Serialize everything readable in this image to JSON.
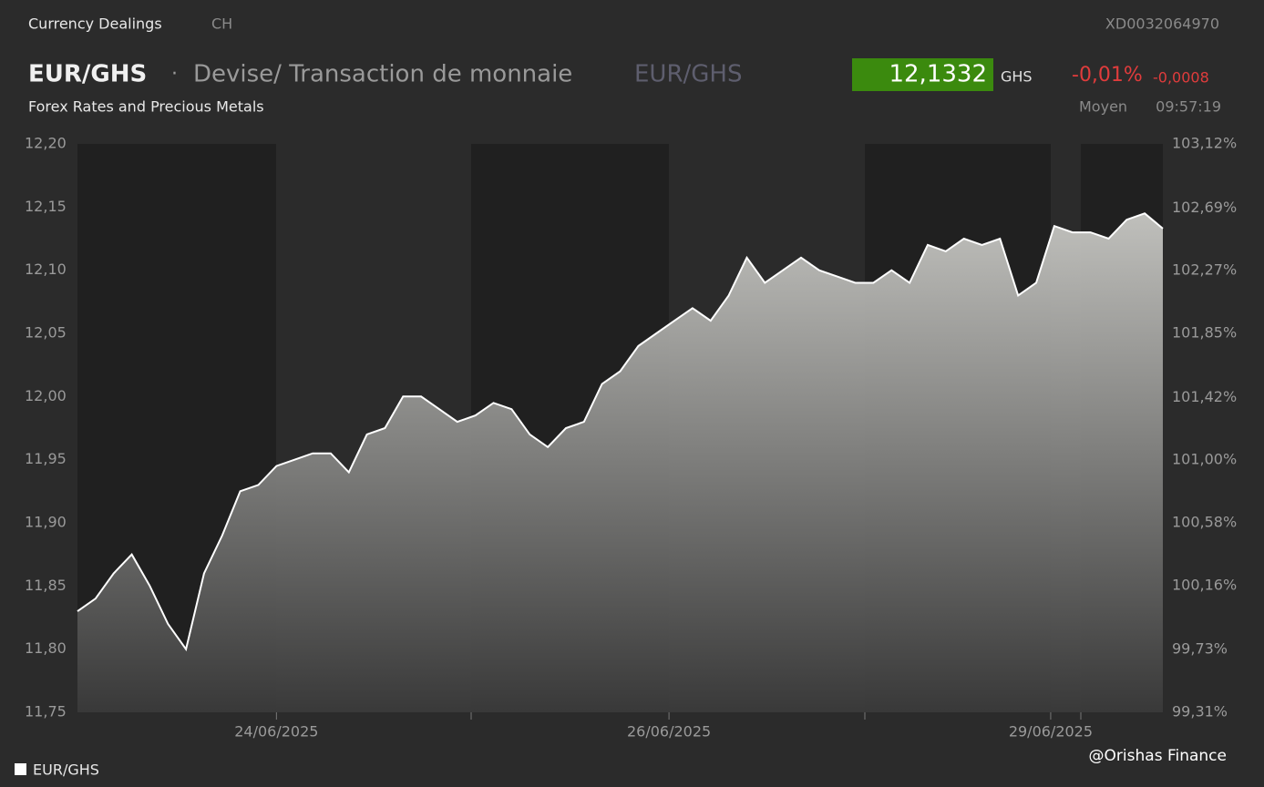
{
  "header": {
    "source": "Currency Dealings",
    "market": "CH",
    "isin": "XD0032064970",
    "pair": "EUR/GHS",
    "separator": "·",
    "description": "Devise/ Transaction de monnaie",
    "pair_alt": "EUR/GHS",
    "price": "12,1332",
    "currency": "GHS",
    "change_pct": "-0,01%",
    "change_abs": "-0,0008",
    "subtitle": "Forex Rates and Precious Metals",
    "price_type": "Moyen",
    "time": "09:57:19",
    "watermark": "@Orishas Finance"
  },
  "chart_data": {
    "type": "area",
    "series": [
      {
        "name": "EUR/GHS",
        "color": "#ffffff",
        "values": [
          11.83,
          11.84,
          11.86,
          11.875,
          11.85,
          11.82,
          11.8,
          11.86,
          11.89,
          11.925,
          11.93,
          11.945,
          11.95,
          11.955,
          11.955,
          11.94,
          11.97,
          11.975,
          12.0,
          12.0,
          11.99,
          11.98,
          11.985,
          11.995,
          11.99,
          11.97,
          11.96,
          11.975,
          11.98,
          12.01,
          12.02,
          12.04,
          12.05,
          12.06,
          12.07,
          12.06,
          12.08,
          12.11,
          12.09,
          12.1,
          12.11,
          12.1,
          12.095,
          12.09,
          12.09,
          12.1,
          12.09,
          12.12,
          12.115,
          12.125,
          12.12,
          12.125,
          12.08,
          12.09,
          12.135,
          12.13,
          12.13,
          12.125,
          12.14,
          12.145,
          12.133
        ]
      }
    ],
    "xlim": [
      0,
      60
    ],
    "xticks": [
      {
        "value": 11,
        "label": "24/06/2025"
      },
      {
        "value": 32.7,
        "label": "26/06/2025"
      },
      {
        "value": 53.8,
        "label": "29/06/2025"
      }
    ],
    "ylim": [
      11.75,
      12.2
    ],
    "yticks": [
      {
        "value": 11.75,
        "label": "11,75"
      },
      {
        "value": 11.8,
        "label": "11,80"
      },
      {
        "value": 11.85,
        "label": "11,85"
      },
      {
        "value": 11.9,
        "label": "11,90"
      },
      {
        "value": 11.95,
        "label": "11,95"
      },
      {
        "value": 12.0,
        "label": "12,00"
      },
      {
        "value": 12.05,
        "label": "12,05"
      },
      {
        "value": 12.1,
        "label": "12,10"
      },
      {
        "value": 12.15,
        "label": "12,15"
      },
      {
        "value": 12.2,
        "label": "12,20"
      }
    ],
    "y2lim": [
      99.31,
      103.12
    ],
    "y2ticks": [
      {
        "value": 99.31,
        "label": "99,31%"
      },
      {
        "value": 99.73,
        "label": "99,73%"
      },
      {
        "value": 100.16,
        "label": "100,16%"
      },
      {
        "value": 100.58,
        "label": "100,58%"
      },
      {
        "value": 101.0,
        "label": "101,00%"
      },
      {
        "value": 101.42,
        "label": "101,42%"
      },
      {
        "value": 101.85,
        "label": "101,85%"
      },
      {
        "value": 102.27,
        "label": "102,27%"
      },
      {
        "value": 102.69,
        "label": "102,69%"
      },
      {
        "value": 103.12,
        "label": "103,12%"
      }
    ]
  }
}
